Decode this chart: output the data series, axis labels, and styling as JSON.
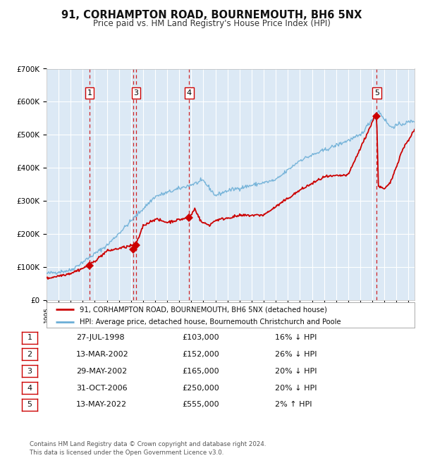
{
  "title": "91, CORHAMPTON ROAD, BOURNEMOUTH, BH6 5NX",
  "subtitle": "Price paid vs. HM Land Registry's House Price Index (HPI)",
  "ylim": [
    0,
    700000
  ],
  "yticks": [
    0,
    100000,
    200000,
    300000,
    400000,
    500000,
    600000,
    700000
  ],
  "ytick_labels": [
    "£0",
    "£100K",
    "£200K",
    "£300K",
    "£400K",
    "£500K",
    "£600K",
    "£700K"
  ],
  "xlim_start": 1995.0,
  "xlim_end": 2025.5,
  "background_color": "#dce9f5",
  "grid_color": "#ffffff",
  "hpi_line_color": "#6baed6",
  "price_line_color": "#cc0000",
  "sale_marker_color": "#cc0000",
  "dashed_line_color": "#cc0000",
  "label_box_color": "#ffffff",
  "label_box_edge": "#cc0000",
  "transactions": [
    {
      "num": 1,
      "date_num": 1998.57,
      "price": 103000,
      "show_box": true
    },
    {
      "num": 2,
      "date_num": 2002.19,
      "price": 152000,
      "show_box": false
    },
    {
      "num": 3,
      "date_num": 2002.41,
      "price": 165000,
      "show_box": true
    },
    {
      "num": 4,
      "date_num": 2006.83,
      "price": 250000,
      "show_box": true
    },
    {
      "num": 5,
      "date_num": 2022.36,
      "price": 555000,
      "show_box": true
    }
  ],
  "legend_line1": "91, CORHAMPTON ROAD, BOURNEMOUTH, BH6 5NX (detached house)",
  "legend_line2": "HPI: Average price, detached house, Bournemouth Christchurch and Poole",
  "footer": "Contains HM Land Registry data © Crown copyright and database right 2024.\nThis data is licensed under the Open Government Licence v3.0.",
  "table_rows": [
    [
      "1",
      "27-JUL-1998",
      "£103,000",
      "16% ↓ HPI"
    ],
    [
      "2",
      "13-MAR-2002",
      "£152,000",
      "26% ↓ HPI"
    ],
    [
      "3",
      "29-MAY-2002",
      "£165,000",
      "20% ↓ HPI"
    ],
    [
      "4",
      "31-OCT-2006",
      "£250,000",
      "20% ↓ HPI"
    ],
    [
      "5",
      "13-MAY-2022",
      "£555,000",
      "2% ↑ HPI"
    ]
  ]
}
